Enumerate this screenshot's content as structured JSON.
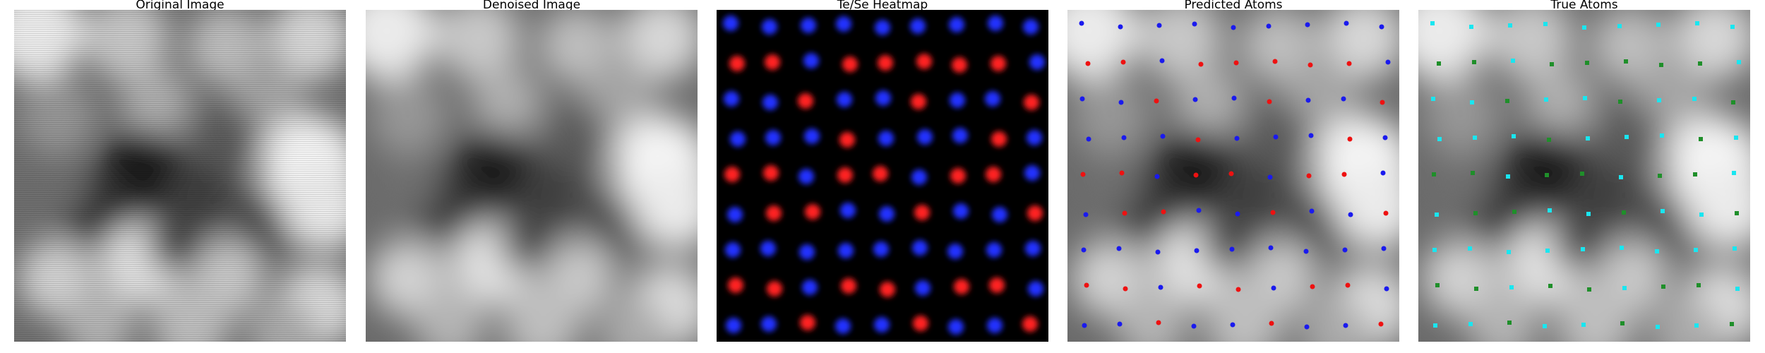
{
  "panels": [
    {
      "title": "Original Image"
    },
    {
      "title": "Denoised Image"
    },
    {
      "title": "Te/Se Heatmap"
    },
    {
      "title": "Predicted Atoms"
    },
    {
      "title": "True Atoms"
    }
  ],
  "colors": {
    "te_red": "#ff2020",
    "se_blue": "#2030ff",
    "true_a_cyan": "#19e6f0",
    "true_b_green": "#1f8f2a",
    "pred_red": "#ee1111",
    "pred_blue": "#1a1aee"
  }
}
